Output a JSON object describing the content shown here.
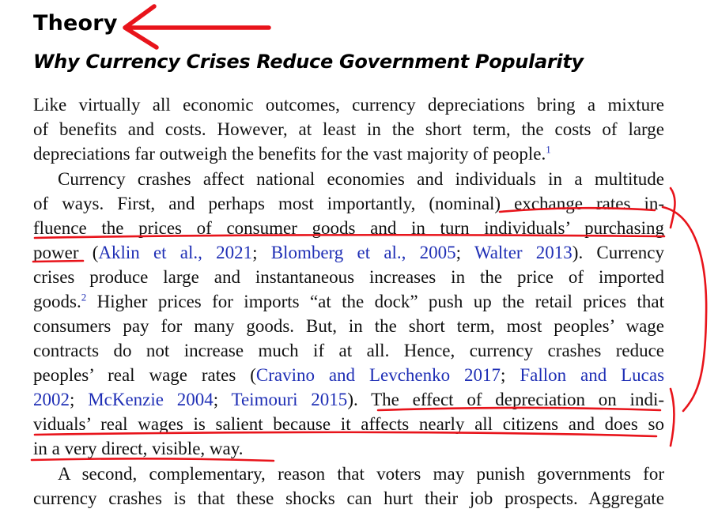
{
  "section_title": "Theory",
  "subsection_title": "Why Currency Crises Reduce Government Popularity",
  "p1": {
    "line1": "Like virtually all economic outcomes, currency depreciations bring a mixture",
    "line2": "of benefits and costs. However, at least in the short term, the costs of large",
    "line3": "depreciations far outweigh the benefits for the vast majority of people.",
    "fn1": "1"
  },
  "p2": {
    "line1": "Currency crashes affect national economies and individuals in a multitude",
    "line2": "of ways. First, and perhaps most importantly, (nominal) exchange rates in-",
    "line3": "fluence the prices of consumer goods and in turn individuals’ purchasing",
    "line4_a": "power (",
    "cite_aklin": "Aklin et al., 2021",
    "sep1": "; ",
    "cite_blomberg": "Blomberg et al., 2005",
    "sep2": "; ",
    "cite_walter": "Walter 2013",
    "line4_b": "). Currency",
    "line5": "crises produce large and instantaneous increases in the price of imported",
    "line6_a": "goods.",
    "fn2": "2",
    "line6_b": " Higher prices for imports “at the dock” push up the retail prices that",
    "line7": "consumers pay for many goods. But, in the short term, most peoples’ wage",
    "line8": "contracts do not increase much if at all. Hence, currency crashes reduce",
    "line9_a": "peoples’ real wage rates (",
    "cite_cravino": "Cravino and Levchenko 2017",
    "sep3": "; ",
    "cite_fallon": "Fallon and Lucas",
    "cite_fallon_year": "2002",
    "sep4": "; ",
    "cite_mckenzie": "McKenzie 2004",
    "sep5": "; ",
    "cite_teimouri": "Teimouri 2015",
    "line10_b": "). The effect of depreciation on indi-",
    "line11": "viduals’ real wages is salient because it affects nearly all citizens and does so",
    "line12": "in a very direct, visible, way."
  },
  "p3": {
    "line1": "A second, complementary, reason that voters may punish governments for",
    "line2": "currency crashes is that these shocks can hurt their job prospects. Aggregate"
  },
  "colors": {
    "citation": "#1f2fb5",
    "annotation": "#e8141b"
  }
}
